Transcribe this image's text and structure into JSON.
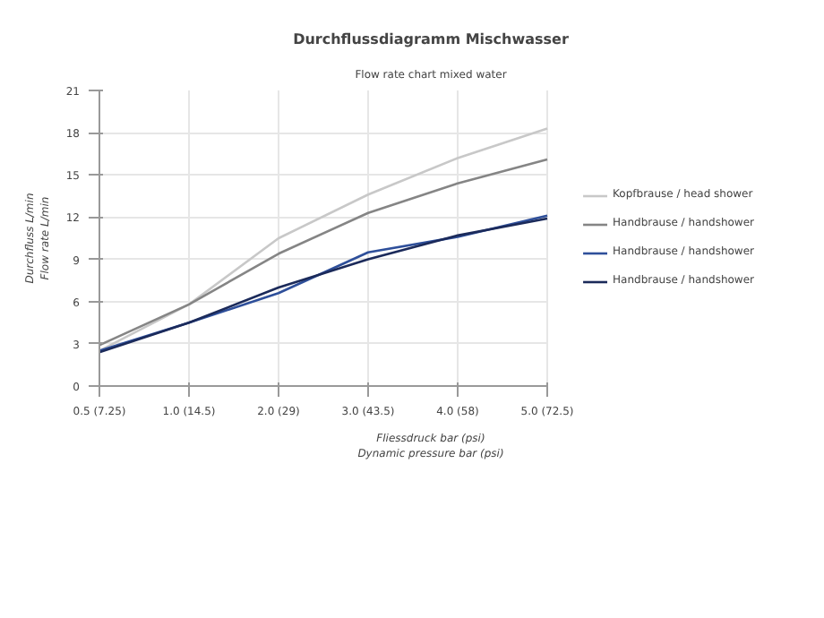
{
  "chart_data": {
    "type": "line",
    "title": "Durchflussdiagramm Mischwasser",
    "subtitle": "Flow rate chart mixed water",
    "xlabel": "Fliessdruck bar (psi)\nDynamic pressure bar (psi)",
    "ylabel": "Durchfluss L/min\nFlow rate L/min",
    "categories": [
      "0.5 (7.25)",
      "1.0 (14.5)",
      "2.0 (29)",
      "3.0 (43.5)",
      "4.0 (58)",
      "5.0 (72.5)"
    ],
    "ylim": [
      0,
      21
    ],
    "yticks": [
      0,
      3,
      6,
      9,
      12,
      15,
      18,
      21
    ],
    "grid": true,
    "legend": "right",
    "series": [
      {
        "name": "Kopfbrause / head shower",
        "color": "#c8c8c8",
        "values": [
          2.5,
          5.8,
          10.5,
          13.6,
          16.2,
          18.3
        ]
      },
      {
        "name": "Handbrause / handshower",
        "color": "#858585",
        "values": [
          2.9,
          5.8,
          9.4,
          12.3,
          14.4,
          16.1
        ]
      },
      {
        "name": "Handbrause / handshower",
        "color": "#2e4f9a",
        "values": [
          2.5,
          4.5,
          6.6,
          9.5,
          10.6,
          12.1
        ]
      },
      {
        "name": "Handbrause / handshower",
        "color": "#1b2a5a",
        "values": [
          2.4,
          4.5,
          7.0,
          9.0,
          10.7,
          11.9
        ]
      }
    ]
  }
}
